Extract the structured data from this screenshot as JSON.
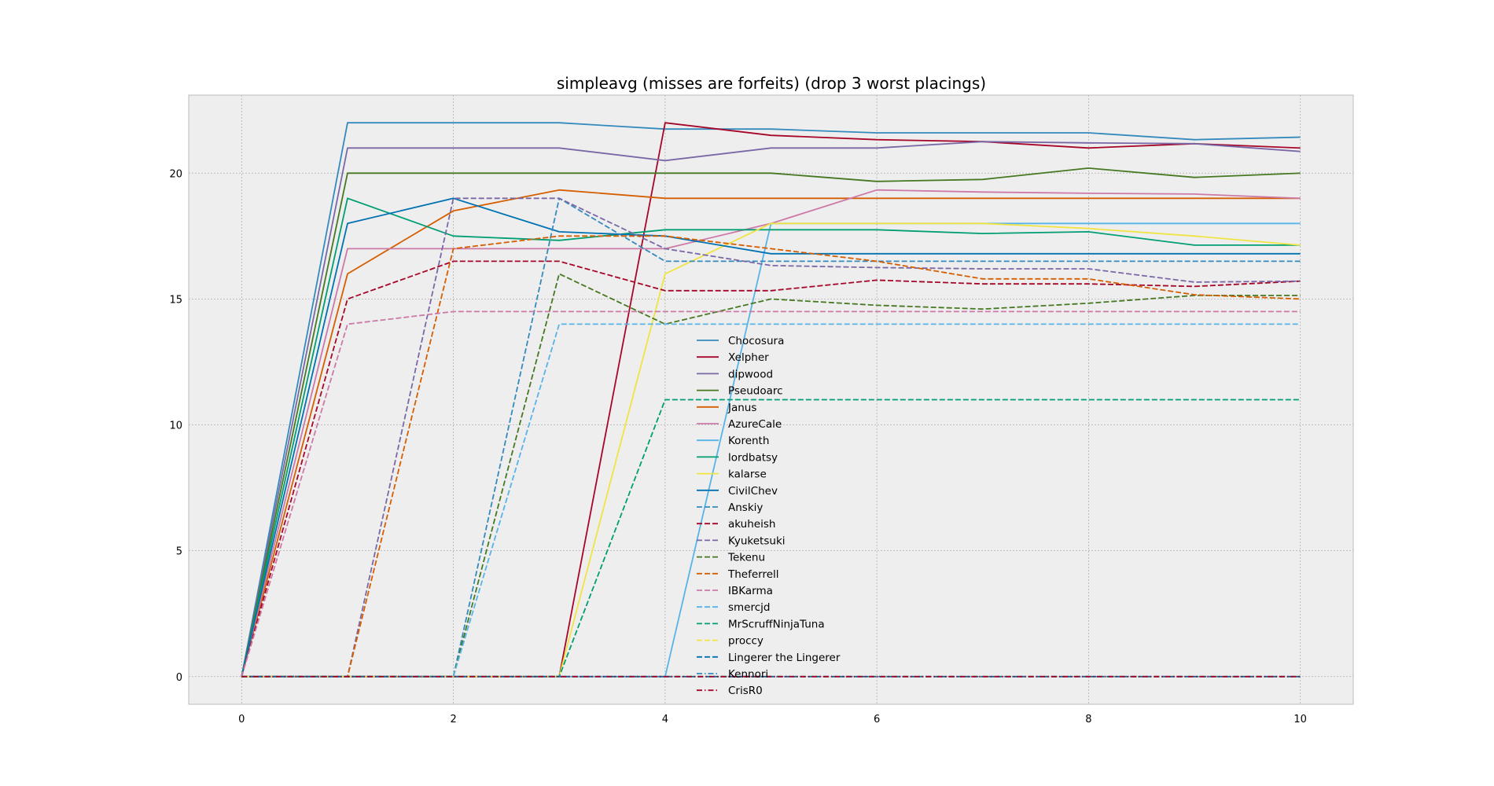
{
  "chart_data": {
    "type": "line",
    "title": "simpleavg (misses are forfeits) (drop 3 worst placings)",
    "xlabel": "",
    "ylabel": "",
    "xlim": [
      -0.5,
      10.5
    ],
    "ylim": [
      -1.1,
      23.1
    ],
    "xticks": [
      0,
      2,
      4,
      6,
      8,
      10
    ],
    "yticks": [
      0,
      5,
      10,
      15,
      20
    ],
    "grid": true,
    "legend_position": "center",
    "x": [
      0,
      1,
      2,
      3,
      4,
      5,
      6,
      7,
      8,
      9,
      10
    ],
    "series": [
      {
        "name": "Chocosura",
        "color": "#348ABD",
        "dash": "solid",
        "values": [
          0,
          22,
          22,
          22,
          21.75,
          21.75,
          21.6,
          21.6,
          21.6,
          21.33,
          21.43
        ]
      },
      {
        "name": "Xelpher",
        "color": "#A60628",
        "dash": "solid",
        "values": [
          0,
          0,
          0,
          0,
          22,
          21.5,
          21.33,
          21.25,
          21.0,
          21.17,
          21.0
        ]
      },
      {
        "name": "dipwood",
        "color": "#7A68A6",
        "dash": "solid",
        "values": [
          0,
          21,
          21,
          21,
          20.5,
          21,
          21,
          21.25,
          21.2,
          21.17,
          20.86
        ]
      },
      {
        "name": "Pseudoarc",
        "color": "#467821",
        "dash": "solid",
        "values": [
          0,
          20,
          20,
          20,
          20,
          20,
          19.67,
          19.75,
          20.2,
          19.83,
          20.0
        ]
      },
      {
        "name": "Janus",
        "color": "#D55E00",
        "dash": "solid",
        "values": [
          0,
          16,
          18.5,
          19.33,
          19,
          19,
          19,
          19,
          19,
          19,
          19
        ]
      },
      {
        "name": "AzureCale",
        "color": "#CC79A7",
        "dash": "solid",
        "values": [
          0,
          17,
          17,
          17,
          17,
          18,
          19.33,
          19.25,
          19.2,
          19.17,
          19.0
        ]
      },
      {
        "name": "Korenth",
        "color": "#56B4E9",
        "dash": "solid",
        "values": [
          0,
          0,
          0,
          0,
          0,
          18,
          18,
          18,
          18,
          18,
          18
        ]
      },
      {
        "name": "lordbatsy",
        "color": "#009E73",
        "dash": "solid",
        "values": [
          0,
          19,
          17.5,
          17.33,
          17.75,
          17.75,
          17.75,
          17.6,
          17.67,
          17.14,
          17.14
        ]
      },
      {
        "name": "kalarse",
        "color": "#F0E442",
        "dash": "solid",
        "values": [
          0,
          0,
          0,
          0,
          16,
          18,
          18,
          18,
          17.8,
          17.5,
          17.14
        ]
      },
      {
        "name": "CivilChev",
        "color": "#0072B2",
        "dash": "solid",
        "values": [
          0,
          18,
          19,
          17.67,
          17.5,
          16.8,
          16.8,
          16.8,
          16.8,
          16.8,
          16.8
        ]
      },
      {
        "name": "Anskiy",
        "color": "#348ABD",
        "dash": "dashed",
        "values": [
          0,
          0,
          0,
          19,
          16.5,
          16.5,
          16.5,
          16.5,
          16.5,
          16.5,
          16.5
        ]
      },
      {
        "name": "akuheish",
        "color": "#A60628",
        "dash": "dashed",
        "values": [
          0,
          15,
          16.5,
          16.5,
          15.33,
          15.33,
          15.75,
          15.6,
          15.6,
          15.5,
          15.71
        ]
      },
      {
        "name": "Kyuketsuki",
        "color": "#7A68A6",
        "dash": "dashed",
        "values": [
          0,
          0,
          19,
          19,
          17,
          16.33,
          16.25,
          16.2,
          16.2,
          15.67,
          15.71
        ]
      },
      {
        "name": "Tekenu",
        "color": "#467821",
        "dash": "dashed",
        "values": [
          0,
          0,
          0,
          16,
          14,
          15,
          14.75,
          14.6,
          14.83,
          15.14,
          15.14
        ]
      },
      {
        "name": "Theferrell",
        "color": "#D55E00",
        "dash": "dashed",
        "values": [
          0,
          0,
          17,
          17.5,
          17.5,
          17,
          16.5,
          15.8,
          15.8,
          15.17,
          15.0
        ]
      },
      {
        "name": "IBKarma",
        "color": "#CC79A7",
        "dash": "dashed",
        "values": [
          0,
          14,
          14.5,
          14.5,
          14.5,
          14.5,
          14.5,
          14.5,
          14.5,
          14.5,
          14.5
        ]
      },
      {
        "name": "smercjd",
        "color": "#56B4E9",
        "dash": "dashed",
        "values": [
          0,
          0,
          0,
          14,
          14,
          14,
          14,
          14,
          14,
          14,
          14
        ]
      },
      {
        "name": "MrScruffNinjaTuna",
        "color": "#009E73",
        "dash": "dashed",
        "values": [
          0,
          0,
          0,
          0,
          11,
          11,
          11,
          11,
          11,
          11,
          11
        ]
      },
      {
        "name": "proccy",
        "color": "#F0E442",
        "dash": "dashed",
        "values": [
          0,
          0,
          0,
          0,
          0,
          0,
          0,
          0,
          0,
          0,
          0
        ]
      },
      {
        "name": "Lingerer the Lingerer",
        "color": "#0072B2",
        "dash": "dashed",
        "values": [
          0,
          0,
          0,
          0,
          0,
          0,
          0,
          0,
          0,
          0,
          0
        ]
      },
      {
        "name": "Kennori",
        "color": "#348ABD",
        "dash": "dashdot",
        "values": [
          0,
          0,
          0,
          0,
          0,
          0,
          0,
          0,
          0,
          0,
          0
        ]
      },
      {
        "name": "CrisR0",
        "color": "#A60628",
        "dash": "dashdot",
        "values": [
          0,
          0,
          0,
          0,
          0,
          0,
          0,
          0,
          0,
          0,
          0
        ]
      }
    ]
  },
  "colors": {
    "axes_background": "#EEEEEE",
    "figure_background": "#FFFFFF",
    "grid": "#B2B2B2",
    "spine": "#BCBCBC"
  }
}
